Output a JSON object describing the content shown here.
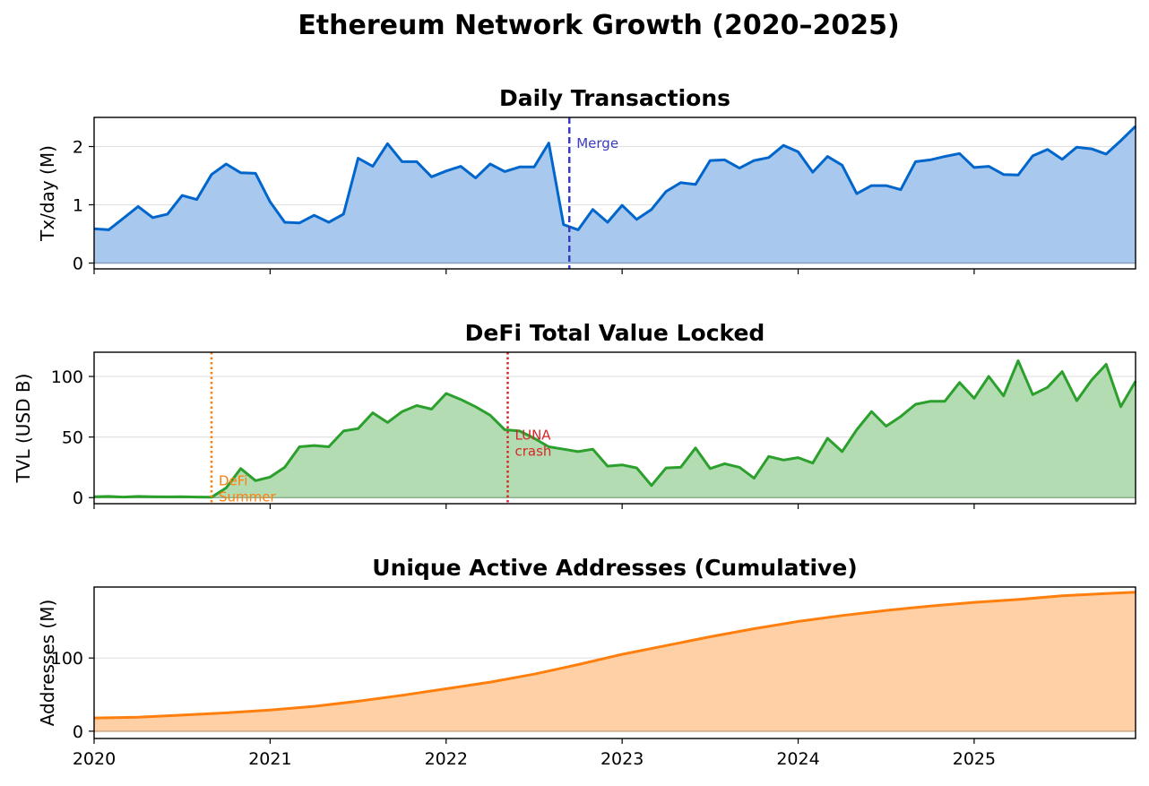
{
  "title": "Ethereum Network Growth (2020–2025)",
  "chart_data": [
    {
      "type": "area",
      "title": "Daily Transactions",
      "xlabel": "",
      "ylabel": "Tx/day (M)",
      "xlim": [
        2020.0,
        2025.917
      ],
      "ylim": [
        -0.1,
        2.5
      ],
      "yticks": [
        "0",
        "1",
        "2"
      ],
      "grid": true,
      "colors": {
        "line": "#0066cc",
        "fill": "#a8c8ee"
      },
      "series": [
        {
          "name": "Daily Transactions",
          "x": [
            2020.0,
            2020.083,
            2020.167,
            2020.25,
            2020.333,
            2020.417,
            2020.5,
            2020.583,
            2020.667,
            2020.75,
            2020.833,
            2020.917,
            2021.0,
            2021.083,
            2021.167,
            2021.25,
            2021.333,
            2021.417,
            2021.5,
            2021.583,
            2021.667,
            2021.75,
            2021.833,
            2021.917,
            2022.0,
            2022.083,
            2022.167,
            2022.25,
            2022.333,
            2022.417,
            2022.5,
            2022.583,
            2022.667,
            2022.75,
            2022.833,
            2022.917,
            2023.0,
            2023.083,
            2023.167,
            2023.25,
            2023.333,
            2023.417,
            2023.5,
            2023.583,
            2023.667,
            2023.75,
            2023.833,
            2023.917,
            2024.0,
            2024.083,
            2024.167,
            2024.25,
            2024.333,
            2024.417,
            2024.5,
            2024.583,
            2024.667,
            2024.75,
            2024.833,
            2024.917,
            2025.0,
            2025.083,
            2025.167,
            2025.25,
            2025.333,
            2025.417,
            2025.5,
            2025.583,
            2025.667,
            2025.75,
            2025.833,
            2025.917
          ],
          "values": [
            0.59,
            0.57,
            0.77,
            0.97,
            0.78,
            0.84,
            1.16,
            1.09,
            1.52,
            1.7,
            1.55,
            1.54,
            1.05,
            0.7,
            0.69,
            0.82,
            0.7,
            0.84,
            1.8,
            1.66,
            2.05,
            1.74,
            1.74,
            1.48,
            1.58,
            1.66,
            1.46,
            1.7,
            1.57,
            1.65,
            1.65,
            2.06,
            0.66,
            0.57,
            0.92,
            0.7,
            0.99,
            0.75,
            0.92,
            1.23,
            1.38,
            1.35,
            1.76,
            1.77,
            1.63,
            1.76,
            1.81,
            2.02,
            1.91,
            1.56,
            1.83,
            1.68,
            1.19,
            1.33,
            1.33,
            1.26,
            1.74,
            1.77,
            1.83,
            1.88,
            1.64,
            1.66,
            1.52,
            1.51,
            1.84,
            1.95,
            1.78,
            1.99,
            1.96,
            1.87,
            2.1,
            2.35
          ]
        }
      ],
      "annotations": [
        {
          "x": 2022.7,
          "text": [
            "Merge"
          ],
          "color": "#3b3bbf",
          "style": "dashed",
          "text_y": 1.98
        }
      ]
    },
    {
      "type": "area",
      "title": "DeFi Total Value Locked",
      "xlabel": "",
      "ylabel": "TVL (USD B)",
      "xlim": [
        2020.0,
        2025.917
      ],
      "ylim": [
        -5,
        120
      ],
      "yticks": [
        "0",
        "50",
        "100"
      ],
      "grid": true,
      "colors": {
        "line": "#2ca02c",
        "fill": "#b3dcb3"
      },
      "series": [
        {
          "name": "DeFi TVL",
          "x": [
            2020.0,
            2020.083,
            2020.167,
            2020.25,
            2020.333,
            2020.417,
            2020.5,
            2020.583,
            2020.667,
            2020.75,
            2020.833,
            2020.917,
            2021.0,
            2021.083,
            2021.167,
            2021.25,
            2021.333,
            2021.417,
            2021.5,
            2021.583,
            2021.667,
            2021.75,
            2021.833,
            2021.917,
            2022.0,
            2022.083,
            2022.167,
            2022.25,
            2022.333,
            2022.417,
            2022.5,
            2022.583,
            2022.667,
            2022.75,
            2022.833,
            2022.917,
            2023.0,
            2023.083,
            2023.167,
            2023.25,
            2023.333,
            2023.417,
            2023.5,
            2023.583,
            2023.667,
            2023.75,
            2023.833,
            2023.917,
            2024.0,
            2024.083,
            2024.167,
            2024.25,
            2024.333,
            2024.417,
            2024.5,
            2024.583,
            2024.667,
            2024.75,
            2024.833,
            2024.917,
            2025.0,
            2025.083,
            2025.167,
            2025.25,
            2025.333,
            2025.417,
            2025.5,
            2025.583,
            2025.667,
            2025.75,
            2025.833,
            2025.917
          ],
          "values": [
            0.8,
            1.0,
            0.5,
            1.0,
            0.8,
            0.6,
            0.7,
            0.5,
            0.3,
            8.0,
            24.0,
            14.0,
            17.0,
            25.0,
            42.0,
            43.0,
            42.0,
            55.0,
            57.0,
            70.0,
            62.0,
            71.0,
            76.0,
            73.0,
            86.0,
            81.0,
            75.0,
            68.0,
            56.0,
            55.0,
            49.0,
            42.0,
            40.0,
            38.0,
            40.0,
            26.0,
            27.0,
            24.5,
            10.0,
            24.5,
            25.0,
            41.0,
            24.0,
            28.0,
            25.0,
            16.0,
            34.0,
            31.0,
            33.0,
            28.5,
            49.0,
            38.0,
            56.0,
            71.0,
            59.0,
            67.0,
            77.0,
            79.5,
            79.5,
            95.0,
            82.0,
            100.0,
            84.0,
            113.0,
            85.0,
            91.0,
            104.0,
            80.0,
            97.0,
            110.0,
            75.0,
            96.0
          ]
        }
      ],
      "annotations": [
        {
          "x": 2020.667,
          "text": [
            "DeFi",
            "Summer"
          ],
          "color": "#ff7f0e",
          "style": "dotted",
          "text_y": 10
        },
        {
          "x": 2022.35,
          "text": [
            "LUNA",
            "crash"
          ],
          "color": "#d62728",
          "style": "dotted",
          "text_y": 48
        }
      ]
    },
    {
      "type": "area",
      "title": "Unique Active Addresses (Cumulative)",
      "xlabel": "",
      "ylabel": "Addresses (M)",
      "xlim": [
        2020.0,
        2025.917
      ],
      "ylim": [
        -10,
        197
      ],
      "yticks": [
        "0",
        "100"
      ],
      "xticks": [
        "2020",
        "2021",
        "2022",
        "2023",
        "2024",
        "2025"
      ],
      "grid": true,
      "colors": {
        "line": "#ff7f0e",
        "fill": "#ffd0a6"
      },
      "series": [
        {
          "name": "Unique Active Addresses",
          "x": [
            2020.0,
            2020.25,
            2020.5,
            2020.75,
            2021.0,
            2021.25,
            2021.5,
            2021.75,
            2022.0,
            2022.25,
            2022.5,
            2022.75,
            2023.0,
            2023.25,
            2023.5,
            2023.75,
            2024.0,
            2024.25,
            2024.5,
            2024.75,
            2025.0,
            2025.25,
            2025.5,
            2025.75,
            2025.917
          ],
          "values": [
            18,
            19,
            22,
            25,
            29,
            34,
            41,
            49,
            58,
            67,
            78,
            91,
            105,
            117,
            129,
            140,
            150,
            158,
            165,
            171,
            176,
            180,
            185,
            188,
            190
          ]
        }
      ],
      "annotations": []
    }
  ]
}
